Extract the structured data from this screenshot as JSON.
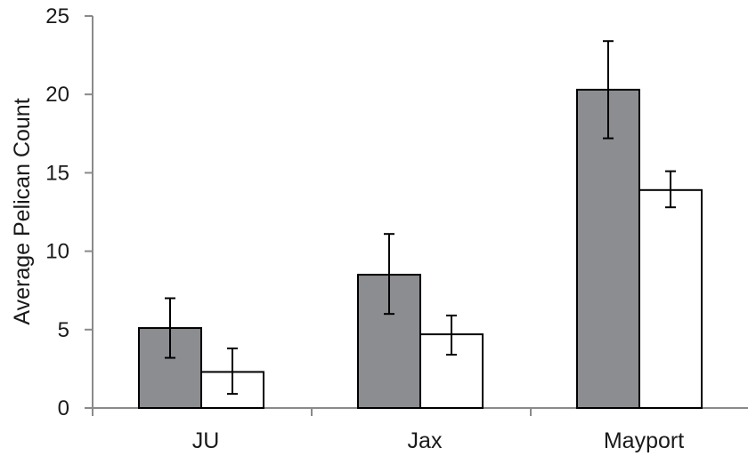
{
  "chart_data": {
    "type": "bar",
    "title": "",
    "xlabel": "",
    "ylabel": "Average Pelican Count",
    "ylim": [
      0,
      25
    ],
    "yticks": [
      0,
      5,
      10,
      15,
      20,
      25
    ],
    "grid": false,
    "legend": "none",
    "categories": [
      "JU",
      "Jax",
      "Mayport"
    ],
    "series": [
      {
        "color": "#8c8d90",
        "values": [
          5.1,
          8.5,
          20.3
        ],
        "error_low": [
          3.2,
          6.0,
          17.2
        ],
        "error_high": [
          7.0,
          11.1,
          23.4
        ]
      },
      {
        "color": "#ffffff",
        "values": [
          2.3,
          4.7,
          13.9
        ],
        "error_low": [
          0.9,
          3.4,
          12.8
        ],
        "error_high": [
          3.8,
          5.9,
          15.1
        ]
      }
    ]
  }
}
